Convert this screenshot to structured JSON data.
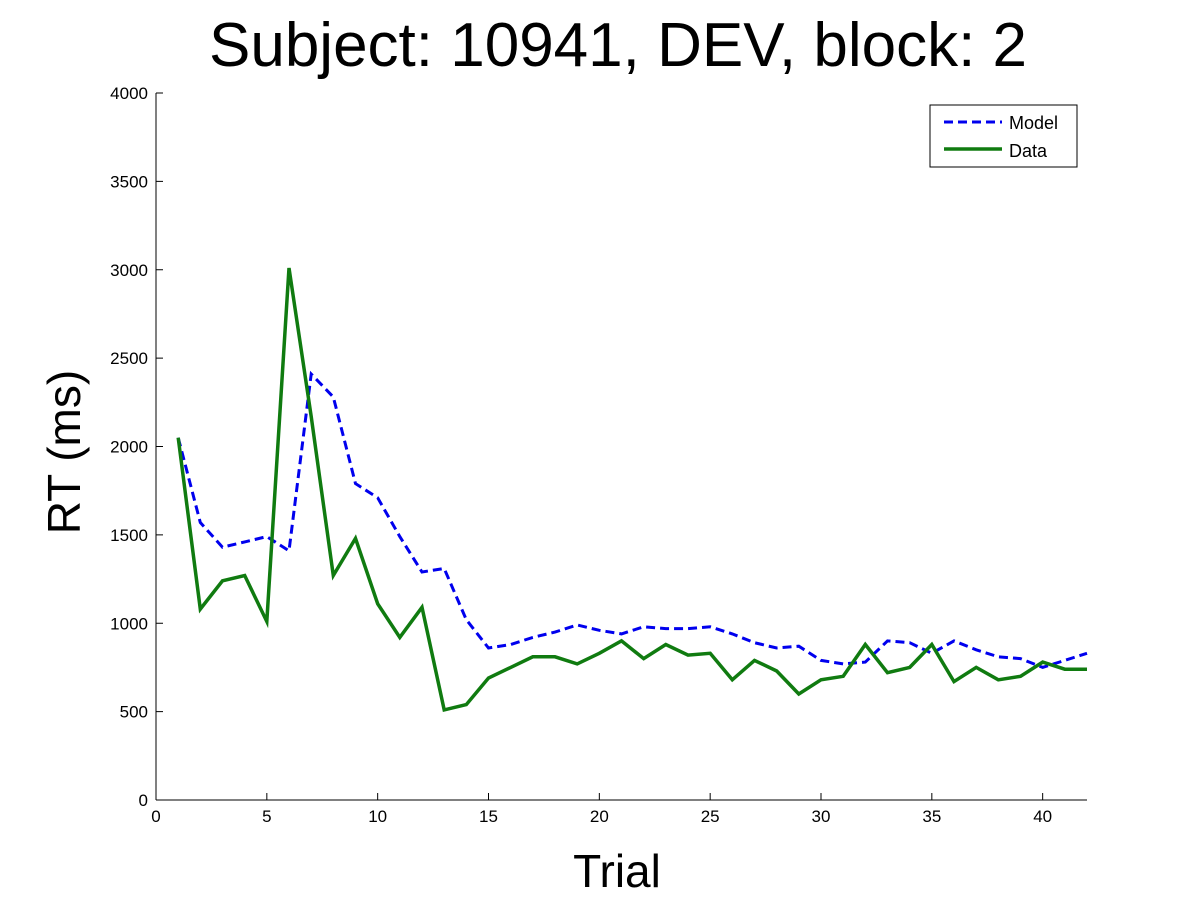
{
  "chart_data": {
    "type": "line",
    "title": "Subject: 10941, DEV, block: 2",
    "xlabel": "Trial",
    "ylabel": "RT (ms)",
    "xlim": [
      0,
      42
    ],
    "ylim": [
      0,
      4000
    ],
    "xticks": [
      0,
      5,
      10,
      15,
      20,
      25,
      30,
      35,
      40
    ],
    "yticks": [
      0,
      500,
      1000,
      1500,
      2000,
      2500,
      3000,
      3500,
      4000
    ],
    "grid": false,
    "legend_position": "top-right",
    "x": [
      1,
      2,
      3,
      4,
      5,
      6,
      7,
      8,
      9,
      10,
      11,
      12,
      13,
      14,
      15,
      16,
      17,
      18,
      19,
      20,
      21,
      22,
      23,
      24,
      25,
      26,
      27,
      28,
      29,
      30,
      31,
      32,
      33,
      34,
      35,
      36,
      37,
      38,
      39,
      40,
      41,
      42
    ],
    "series": [
      {
        "name": "Model",
        "color": "#0000ee",
        "style": "dashed",
        "values": [
          2050,
          1570,
          1430,
          1460,
          1490,
          1410,
          2410,
          2280,
          1790,
          1710,
          1490,
          1290,
          1310,
          1020,
          860,
          880,
          920,
          950,
          990,
          960,
          940,
          980,
          970,
          970,
          980,
          940,
          890,
          860,
          870,
          790,
          770,
          780,
          900,
          890,
          830,
          900,
          850,
          810,
          800,
          750,
          790,
          830
        ]
      },
      {
        "name": "Data",
        "color": "#107b10",
        "style": "solid",
        "values": [
          2050,
          1080,
          1240,
          1270,
          1010,
          3010,
          2170,
          1270,
          1480,
          1110,
          920,
          1090,
          510,
          540,
          690,
          750,
          810,
          810,
          770,
          830,
          900,
          800,
          880,
          820,
          830,
          680,
          790,
          730,
          600,
          680,
          700,
          880,
          720,
          750,
          880,
          670,
          750,
          680,
          700,
          780,
          740,
          740
        ]
      }
    ]
  }
}
